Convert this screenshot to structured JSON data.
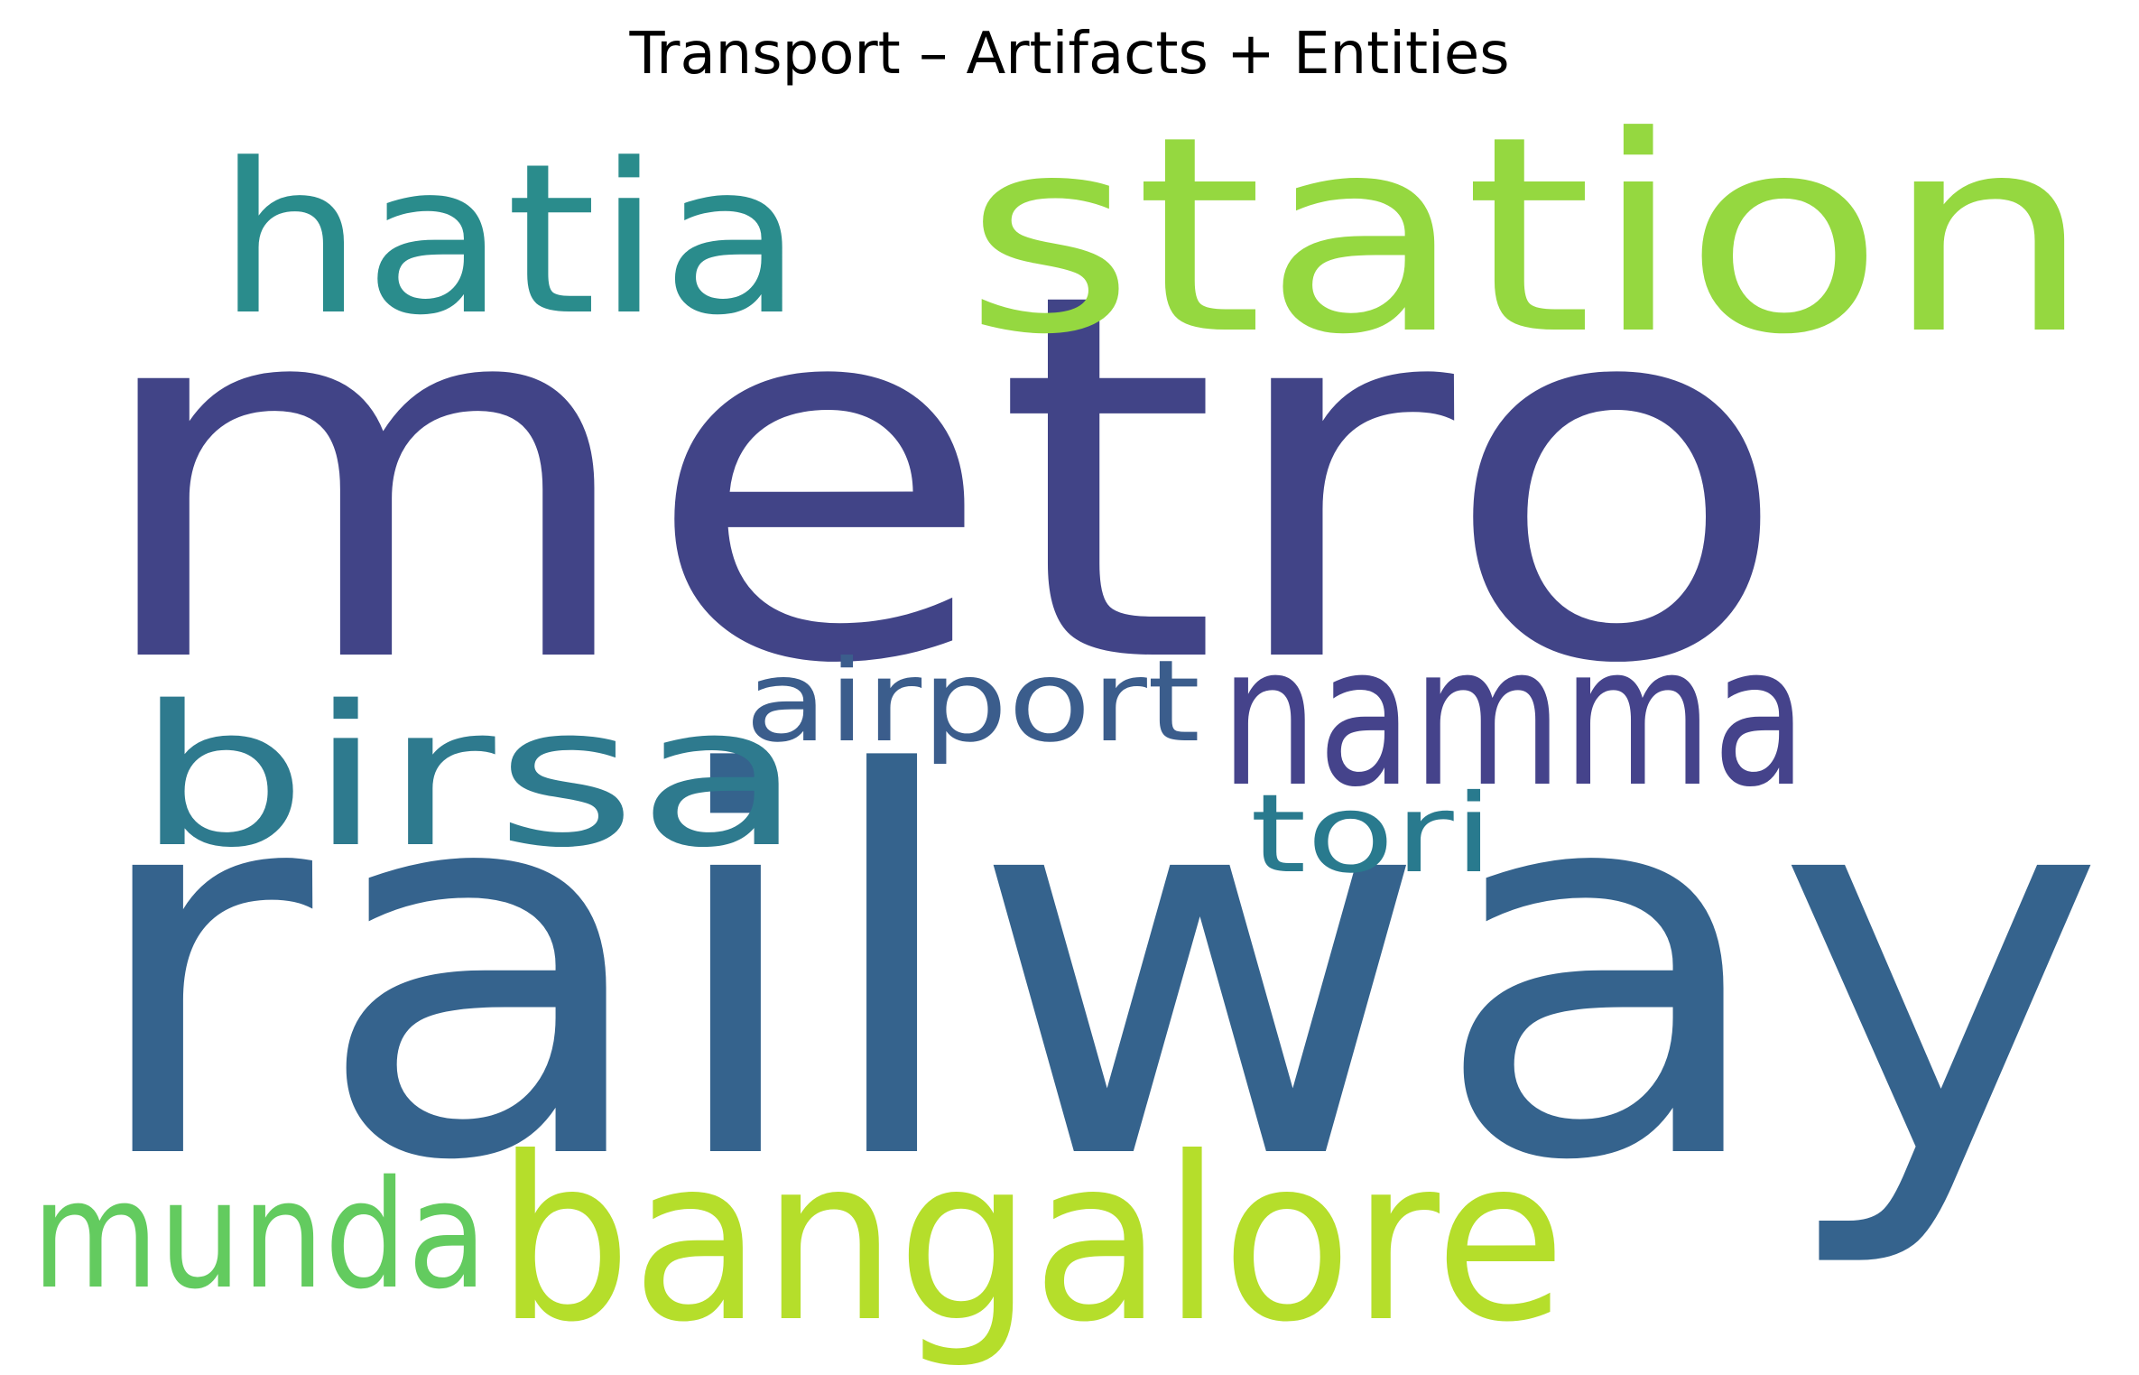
{
  "title": "Transport – Artifacts + Entities",
  "words": [
    {
      "key": "metro",
      "text": "metro",
      "color": "#414487"
    },
    {
      "key": "railway",
      "text": "railway",
      "color": "#35638d"
    },
    {
      "key": "station",
      "text": "station",
      "color": "#95d840"
    },
    {
      "key": "hatia",
      "text": "hatia",
      "color": "#2a8c8c"
    },
    {
      "key": "bangalore",
      "text": "bangalore",
      "color": "#b5de2b"
    },
    {
      "key": "birsa",
      "text": "birsa",
      "color": "#2e7a8e"
    },
    {
      "key": "namma",
      "text": "namma",
      "color": "#45438b"
    },
    {
      "key": "munda",
      "text": "munda",
      "color": "#63cb5f"
    },
    {
      "key": "airport",
      "text": "airport",
      "color": "#3b5d8c"
    },
    {
      "key": "tori",
      "text": "tori",
      "color": "#297a8e"
    }
  ]
}
